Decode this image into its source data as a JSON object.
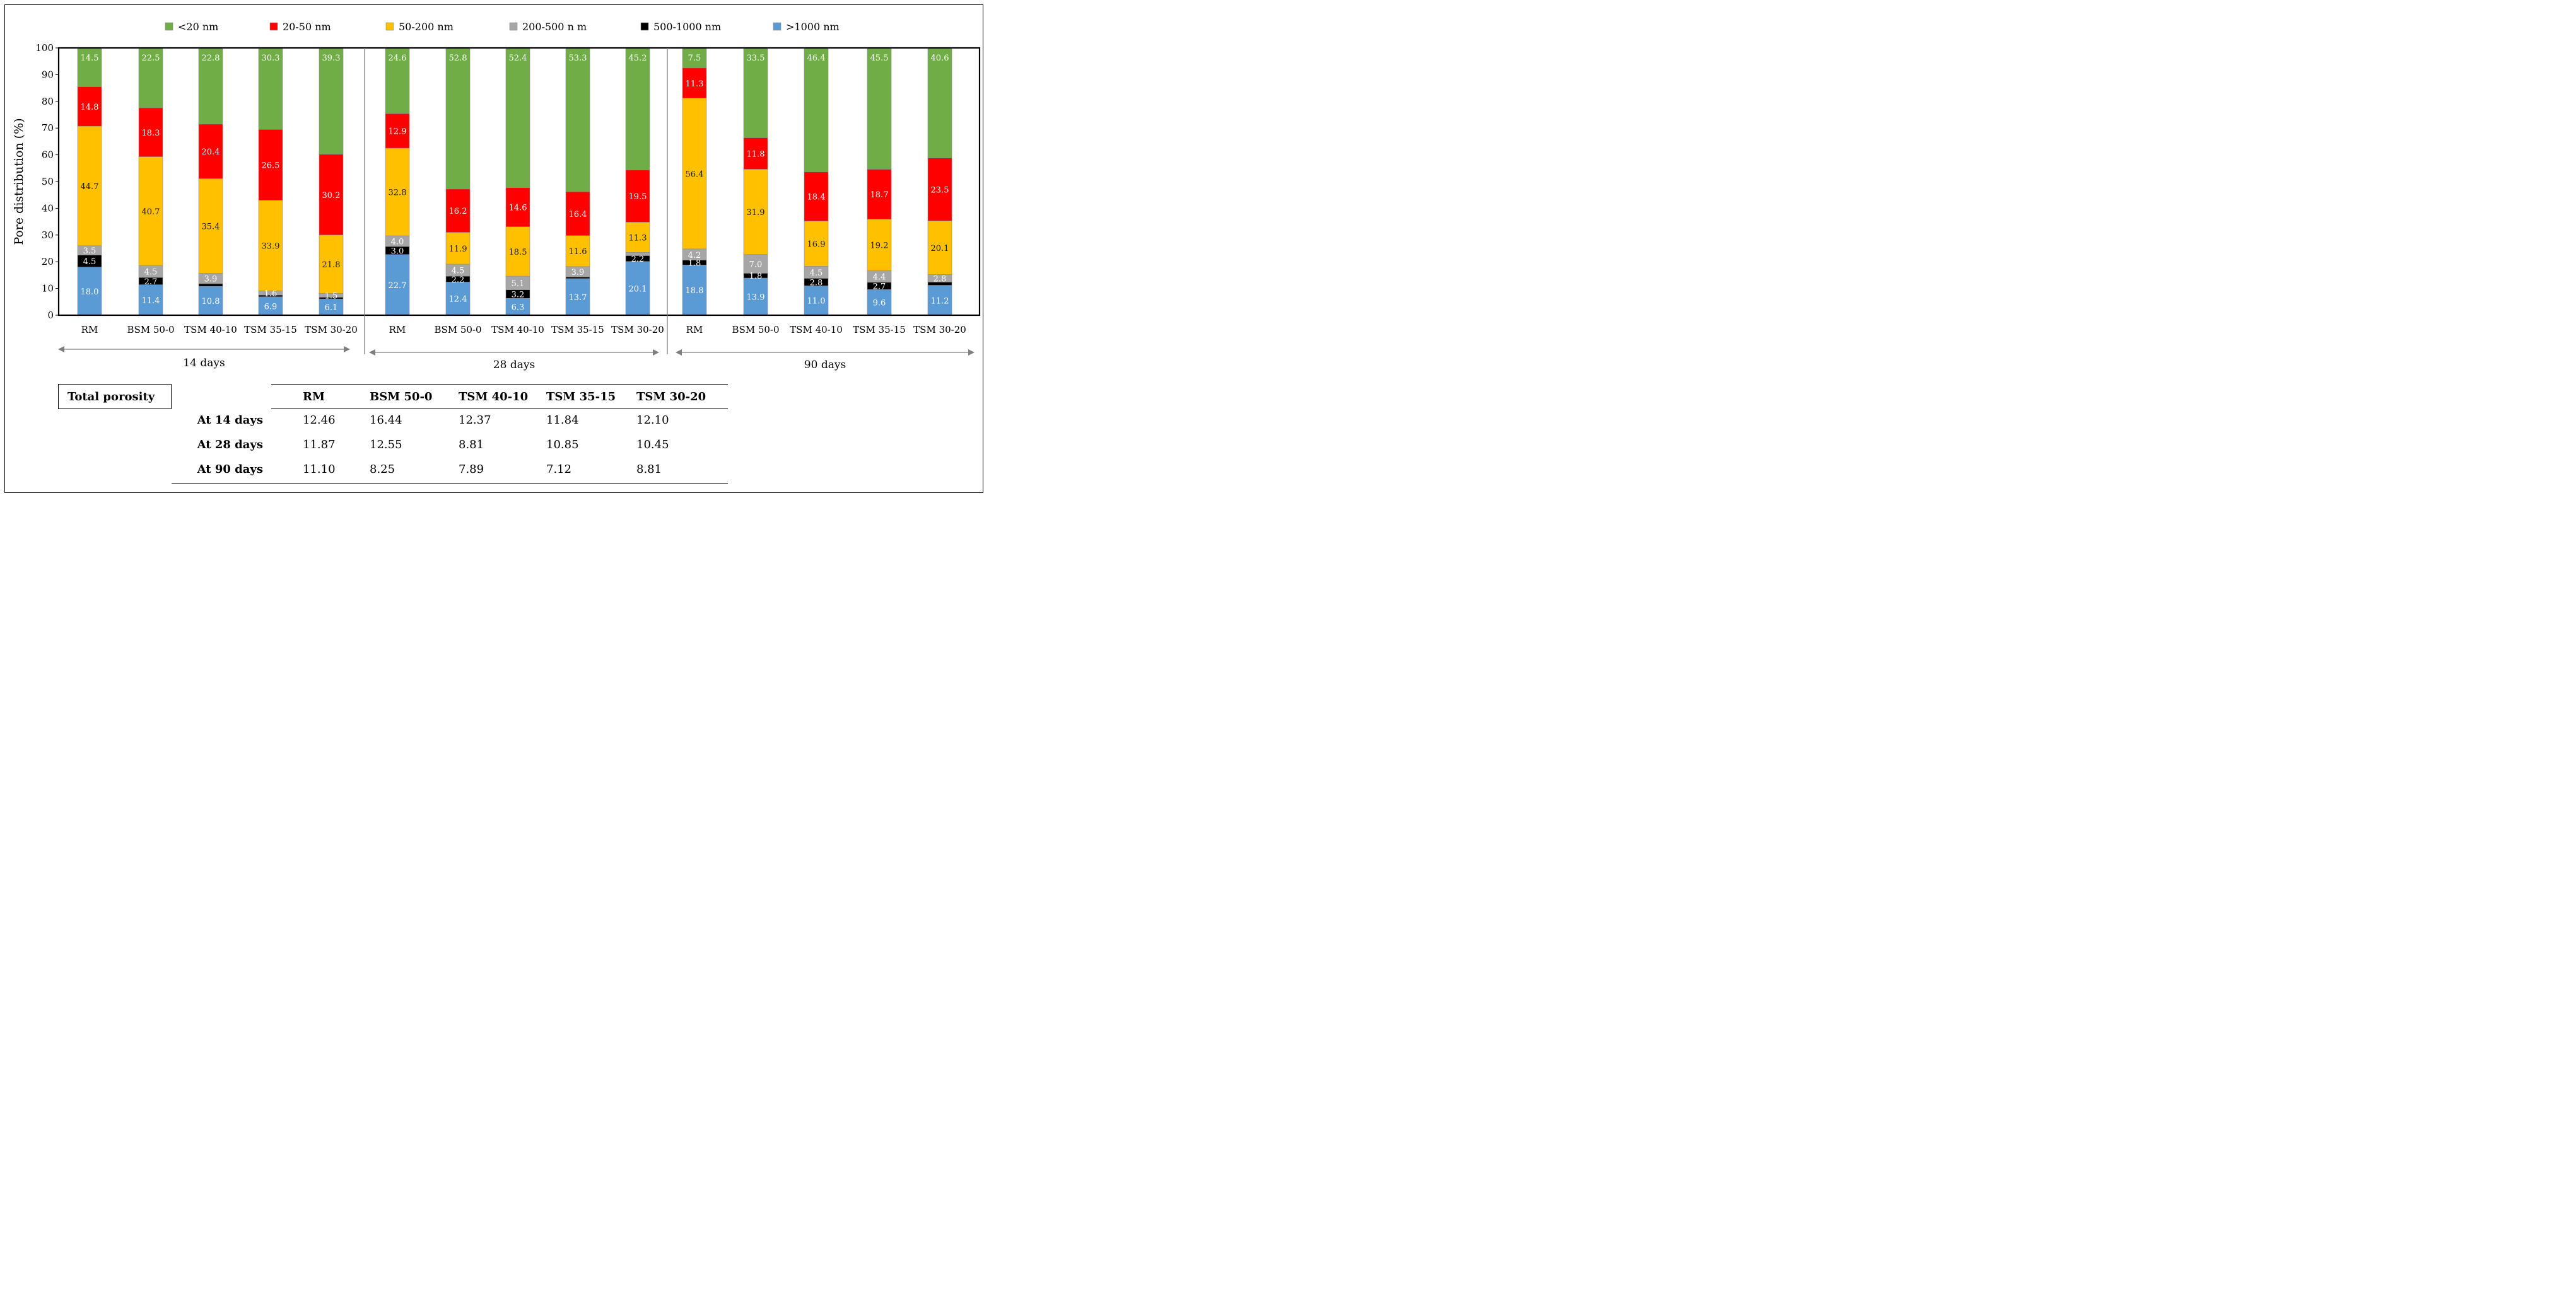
{
  "chart_data": {
    "type": "bar",
    "stacked": true,
    "ylabel": "Pore distribution (%)",
    "ylim": [
      0,
      100
    ],
    "yticks": [
      0,
      10,
      20,
      30,
      40,
      50,
      60,
      70,
      80,
      90,
      100
    ],
    "legend_position": "top",
    "groups": [
      "14 days",
      "28 days",
      "90 days"
    ],
    "categories": [
      "RM",
      "BSM 50-0",
      "TSM 40-10",
      "TSM 35-15",
      "TSM 30-20",
      "RM",
      "BSM 50-0",
      "TSM 40-10",
      "TSM 35-15",
      "TSM 30-20",
      "RM",
      "BSM 50-0",
      "TSM 40-10",
      "TSM 35-15",
      "TSM 30-20"
    ],
    "series": [
      {
        "name": ">1000 nm",
        "color": "#5B9BD5",
        "values": [
          18.0,
          11.4,
          10.8,
          6.9,
          6.1,
          22.7,
          12.4,
          6.3,
          13.7,
          20.1,
          18.8,
          13.9,
          11.0,
          9.6,
          11.2
        ],
        "labels": [
          "18.0",
          "11.4",
          "10.8",
          "6.9",
          "6.1",
          "22.7",
          "12.4",
          "6.3",
          "13.7",
          "20.1",
          "18.8",
          "13.9",
          "11.0",
          "9.6",
          "11.2"
        ]
      },
      {
        "name": "500-1000 nm",
        "color": "#000000",
        "values": [
          4.5,
          2.7,
          1.0,
          0.6,
          0.6,
          3.0,
          2.2,
          3.2,
          0.6,
          2.2,
          1.8,
          1.8,
          2.8,
          2.7,
          1.2
        ],
        "labels": [
          "4.5",
          "2.7",
          "",
          "",
          "",
          "3.0",
          "2.2",
          "3.2",
          "",
          "2.2",
          "1.8",
          "1.8",
          "2.8",
          "2.7",
          ""
        ]
      },
      {
        "name": "200-500 n m",
        "color": "#A6A6A6",
        "values": [
          3.5,
          4.5,
          3.9,
          1.6,
          1.5,
          4.0,
          4.5,
          5.1,
          3.9,
          1.2,
          4.2,
          7.0,
          4.5,
          4.4,
          2.8
        ],
        "labels": [
          "3.5",
          "4.5",
          "3.9",
          "1.6",
          "1.5",
          "4.0",
          "4.5",
          "5.1",
          "3.9",
          "",
          "4.2",
          "7.0",
          "4.5",
          "4.4",
          "2.8"
        ]
      },
      {
        "name": "50-200 nm",
        "color": "#FFC000",
        "values": [
          44.7,
          40.7,
          35.4,
          33.9,
          21.8,
          32.8,
          11.9,
          18.5,
          11.6,
          11.3,
          56.4,
          31.9,
          16.9,
          19.2,
          20.1
        ],
        "labels": [
          "44.7",
          "40.7",
          "35.4",
          "33.9",
          "21.8",
          "32.8",
          "11.9",
          "18.5",
          "11.6",
          "11.3",
          "56.4",
          "31.9",
          "16.9",
          "19.2",
          "20.1"
        ]
      },
      {
        "name": "20-50 nm",
        "color": "#FF0000",
        "values": [
          14.8,
          18.3,
          20.4,
          26.5,
          30.2,
          12.9,
          16.2,
          14.6,
          16.4,
          19.5,
          11.3,
          11.8,
          18.4,
          18.7,
          23.5
        ],
        "labels": [
          "14.8",
          "18.3",
          "20.4",
          "26.5",
          "30.2",
          "12.9",
          "16.2",
          "14.6",
          "16.4",
          "19.5",
          "11.3",
          "11.8",
          "18.4",
          "18.7",
          "23.5"
        ]
      },
      {
        "name": "<20 nm",
        "color": "#70AD47",
        "values": [
          14.5,
          22.5,
          22.8,
          30.3,
          39.3,
          24.6,
          52.8,
          52.4,
          53.3,
          45.2,
          7.5,
          33.5,
          46.4,
          45.5,
          40.6
        ],
        "labels": [
          "14.5",
          "22.5",
          "22.8",
          "30.3",
          "39.3",
          "24.6",
          "52.8",
          "52.4",
          "53.3",
          "45.2",
          "7.5",
          "33.5",
          "46.4",
          "45.5",
          "40.6"
        ]
      }
    ],
    "legend_order": [
      "<20 nm",
      "20-50 nm",
      "50-200 nm",
      "200-500 n m",
      "500-1000 nm",
      ">1000 nm"
    ]
  },
  "table": {
    "title": "Total porosity",
    "columns": [
      "RM",
      "BSM 50-0",
      "TSM 40-10",
      "TSM 35-15",
      "TSM 30-20"
    ],
    "rows": [
      {
        "label": "At 14 days",
        "values": [
          "12.46",
          "16.44",
          "12.37",
          "11.84",
          "12.10"
        ]
      },
      {
        "label": "At 28 days",
        "values": [
          "11.87",
          "12.55",
          "8.81",
          "10.85",
          "10.45"
        ]
      },
      {
        "label": "At 90 days",
        "values": [
          "11.10",
          "8.25",
          "7.89",
          "7.12",
          "8.81"
        ]
      }
    ]
  }
}
